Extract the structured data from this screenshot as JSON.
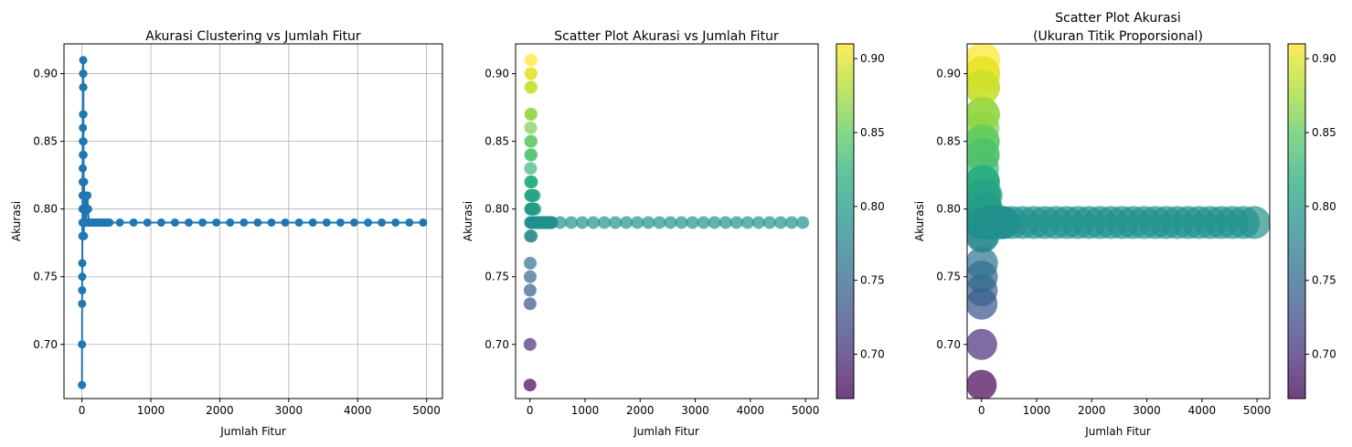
{
  "chart_data": [
    {
      "type": "line",
      "title": "Akurasi Clustering vs Jumlah Fitur",
      "xlabel": "Jumlah Fitur",
      "ylabel": "Akurasi",
      "xlim": [
        -260,
        5230
      ],
      "ylim": [
        0.66,
        0.922
      ],
      "xticks": [
        0,
        1000,
        2000,
        3000,
        4000,
        5000
      ],
      "yticks": [
        0.7,
        0.75,
        0.8,
        0.85,
        0.9
      ],
      "xtick_labels": [
        "0",
        "1000",
        "2000",
        "3000",
        "4000",
        "5000"
      ],
      "ytick_labels": [
        "0.70",
        "0.75",
        "0.80",
        "0.85",
        "0.90"
      ],
      "grid": true,
      "color": "#1f77b4",
      "marker": "circle",
      "x": [
        1,
        2,
        3,
        4,
        5,
        6,
        7,
        8,
        9,
        10,
        11,
        12,
        13,
        14,
        15,
        16,
        17,
        18,
        19,
        20,
        21,
        22,
        23,
        24,
        25,
        26,
        27,
        28,
        29,
        30,
        31,
        32,
        33,
        34,
        35,
        36,
        37,
        38,
        39,
        40,
        41,
        42,
        43,
        44,
        45,
        46,
        47,
        48,
        49,
        50,
        60,
        70,
        80,
        90,
        100,
        110,
        120,
        130,
        140,
        150,
        160,
        170,
        180,
        190,
        200,
        210,
        220,
        230,
        240,
        250,
        260,
        270,
        280,
        290,
        300,
        310,
        320,
        330,
        340,
        350,
        360,
        370,
        380,
        390,
        400,
        550,
        750,
        950,
        1150,
        1350,
        1550,
        1750,
        1950,
        2150,
        2350,
        2550,
        2750,
        2950,
        3150,
        3350,
        3550,
        3750,
        3950,
        4150,
        4350,
        4550,
        4750,
        4950
      ],
      "y": [
        0.67,
        0.7,
        0.73,
        0.74,
        0.75,
        0.76,
        0.78,
        0.79,
        0.8,
        0.81,
        0.82,
        0.83,
        0.84,
        0.85,
        0.86,
        0.87,
        0.89,
        0.9,
        0.91,
        0.9,
        0.89,
        0.87,
        0.85,
        0.84,
        0.82,
        0.81,
        0.8,
        0.79,
        0.78,
        0.8,
        0.81,
        0.82,
        0.79,
        0.8,
        0.81,
        0.79,
        0.8,
        0.81,
        0.79,
        0.8,
        0.81,
        0.79,
        0.8,
        0.81,
        0.79,
        0.8,
        0.81,
        0.79,
        0.8,
        0.81,
        0.79,
        0.8,
        0.81,
        0.8,
        0.79,
        0.79,
        0.79,
        0.79,
        0.79,
        0.79,
        0.79,
        0.79,
        0.79,
        0.79,
        0.79,
        0.79,
        0.79,
        0.79,
        0.79,
        0.79,
        0.79,
        0.79,
        0.79,
        0.79,
        0.79,
        0.79,
        0.79,
        0.79,
        0.79,
        0.79,
        0.79,
        0.79,
        0.79,
        0.79,
        0.79,
        0.79,
        0.79,
        0.79,
        0.79,
        0.79,
        0.79,
        0.79,
        0.79,
        0.79,
        0.79,
        0.79,
        0.79,
        0.79,
        0.79,
        0.79,
        0.79,
        0.79,
        0.79,
        0.79,
        0.79,
        0.79,
        0.79,
        0.79
      ]
    },
    {
      "type": "scatter",
      "title": "Scatter Plot Akurasi vs Jumlah Fitur",
      "xlabel": "Jumlah Fitur",
      "ylabel": "Akurasi",
      "xlim": [
        -260,
        5230
      ],
      "ylim": [
        0.66,
        0.922
      ],
      "xticks": [
        0,
        1000,
        2000,
        3000,
        4000,
        5000
      ],
      "yticks": [
        0.7,
        0.75,
        0.8,
        0.85,
        0.9
      ],
      "xtick_labels": [
        "0",
        "1000",
        "2000",
        "3000",
        "4000",
        "5000"
      ],
      "ytick_labels": [
        "0.70",
        "0.75",
        "0.80",
        "0.85",
        "0.90"
      ],
      "grid": false,
      "colormap": "viridis",
      "alpha": 0.7,
      "colorbar": {
        "range": [
          0.67,
          0.91
        ],
        "ticks": [
          0.7,
          0.75,
          0.8,
          0.85,
          0.9
        ],
        "tick_labels": [
          "0.70",
          "0.75",
          "0.80",
          "0.85",
          "0.90"
        ]
      },
      "points": "same as chart 1 (x, y)"
    },
    {
      "type": "scatter",
      "title": "Scatter Plot Akurasi",
      "subtitle": "(Ukuran Titik Proporsional)",
      "xlabel": "Jumlah Fitur",
      "ylabel": "Akurasi",
      "xlim": [
        -260,
        5230
      ],
      "ylim": [
        0.66,
        0.922
      ],
      "xticks": [
        0,
        1000,
        2000,
        3000,
        4000,
        5000
      ],
      "yticks": [
        0.7,
        0.75,
        0.8,
        0.85,
        0.9
      ],
      "xtick_labels": [
        "0",
        "1000",
        "2000",
        "3000",
        "4000",
        "5000"
      ],
      "ytick_labels": [
        "0.70",
        "0.75",
        "0.80",
        "0.85",
        "0.90"
      ],
      "grid": false,
      "colormap": "viridis",
      "alpha": 0.7,
      "size_encoding": "accuracy",
      "colorbar": {
        "range": [
          0.67,
          0.91
        ],
        "ticks": [
          0.7,
          0.75,
          0.8,
          0.85,
          0.9
        ],
        "tick_labels": [
          "0.70",
          "0.75",
          "0.80",
          "0.85",
          "0.90"
        ]
      },
      "points": "same as chart 1 (x, y)"
    }
  ]
}
